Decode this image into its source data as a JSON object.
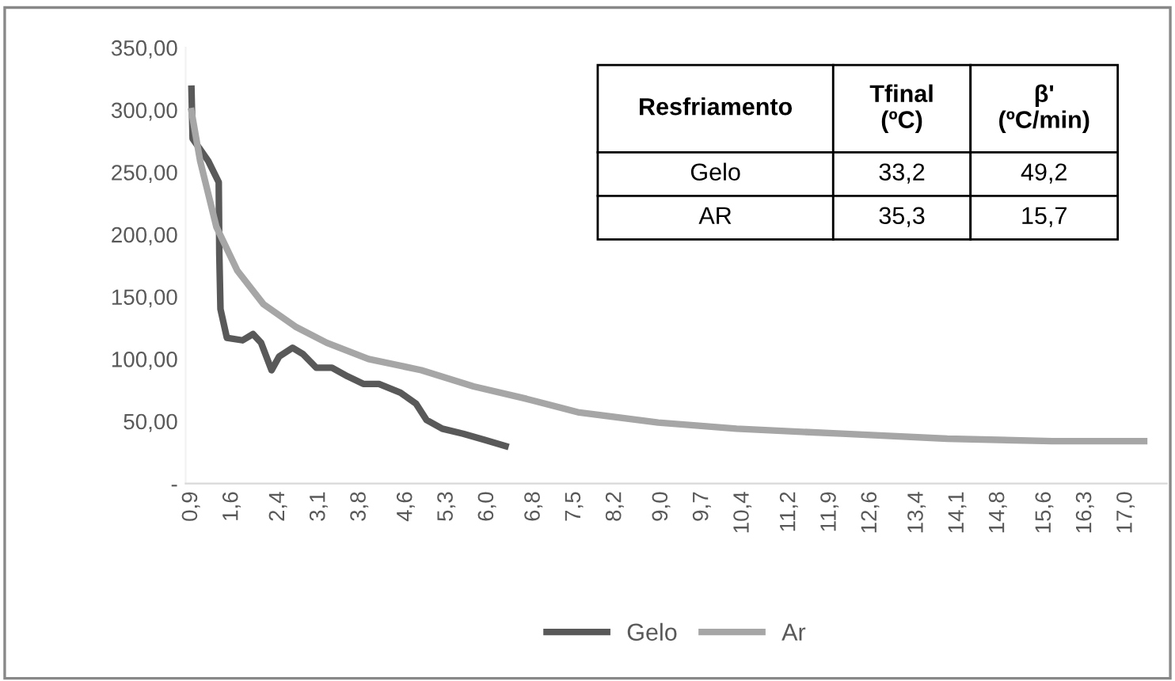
{
  "chart_data": {
    "type": "line",
    "series": [
      {
        "name": "Gelo",
        "color": "#595959",
        "x": [
          0.9,
          0.92,
          1.19,
          1.37,
          1.38,
          1.4,
          1.51,
          1.78,
          1.96,
          2.1,
          2.28,
          2.41,
          2.64,
          2.82,
          3.05,
          3.32,
          3.59,
          3.86,
          4.13,
          4.5,
          4.77,
          4.95,
          5.22,
          5.58,
          5.95,
          6.31
        ],
        "values": [
          317,
          277,
          259,
          242,
          184,
          140,
          117,
          115,
          120,
          113,
          91,
          102,
          109,
          104,
          93,
          93,
          86,
          80,
          80,
          73,
          64,
          51,
          44,
          40,
          35,
          30
        ]
      },
      {
        "name": "Ar",
        "color": "#a6a6a6",
        "x": [
          0.9,
          1.05,
          1.33,
          1.69,
          2.14,
          2.69,
          3.23,
          3.95,
          4.86,
          5.76,
          6.67,
          7.58,
          8.94,
          10.29,
          12.1,
          13.92,
          15.73,
          17.31
        ],
        "values": [
          299,
          259,
          206,
          171,
          144,
          126,
          113,
          100,
          91,
          78,
          68,
          57,
          49,
          44,
          40,
          36,
          34,
          34
        ]
      }
    ],
    "xlim": [
      0.8,
      17.7
    ],
    "xticks": [
      {
        "value": 0.9,
        "label": "0,9"
      },
      {
        "value": 1.6,
        "label": "1,6"
      },
      {
        "value": 2.4,
        "label": "2,4"
      },
      {
        "value": 3.1,
        "label": "3,1"
      },
      {
        "value": 3.8,
        "label": "3,8"
      },
      {
        "value": 4.6,
        "label": "4,6"
      },
      {
        "value": 5.3,
        "label": "5,3"
      },
      {
        "value": 6.0,
        "label": "6,0"
      },
      {
        "value": 6.8,
        "label": "6,8"
      },
      {
        "value": 7.5,
        "label": "7,5"
      },
      {
        "value": 8.2,
        "label": "8,2"
      },
      {
        "value": 9.0,
        "label": "9,0"
      },
      {
        "value": 9.7,
        "label": "9,7"
      },
      {
        "value": 10.4,
        "label": "10,4"
      },
      {
        "value": 11.2,
        "label": "11,2"
      },
      {
        "value": 11.9,
        "label": "11,9"
      },
      {
        "value": 12.6,
        "label": "12,6"
      },
      {
        "value": 13.4,
        "label": "13,4"
      },
      {
        "value": 14.1,
        "label": "14,1"
      },
      {
        "value": 14.8,
        "label": "14,8"
      },
      {
        "value": 15.6,
        "label": "15,6"
      },
      {
        "value": 16.3,
        "label": "16,3"
      },
      {
        "value": 17.0,
        "label": "17,0"
      }
    ],
    "ylim": [
      0,
      350
    ],
    "yticks": [
      {
        "value": 0,
        "label": "-"
      },
      {
        "value": 50,
        "label": "50,00"
      },
      {
        "value": 100,
        "label": "100,00"
      },
      {
        "value": 150,
        "label": "150,00"
      },
      {
        "value": 200,
        "label": "200,00"
      },
      {
        "value": 250,
        "label": "250,00"
      },
      {
        "value": 300,
        "label": "300,00"
      },
      {
        "value": 350,
        "label": "350,00"
      }
    ],
    "grid": false,
    "legend": "bottom",
    "marker": "none",
    "line_style": "solid",
    "annotations": [
      "Resfriamento",
      "Tfinal\n(ºC)",
      "β'\n(ºC/min)",
      "Gelo",
      "33,2",
      "49,2",
      "AR",
      "35,3",
      "15,7"
    ]
  }
}
